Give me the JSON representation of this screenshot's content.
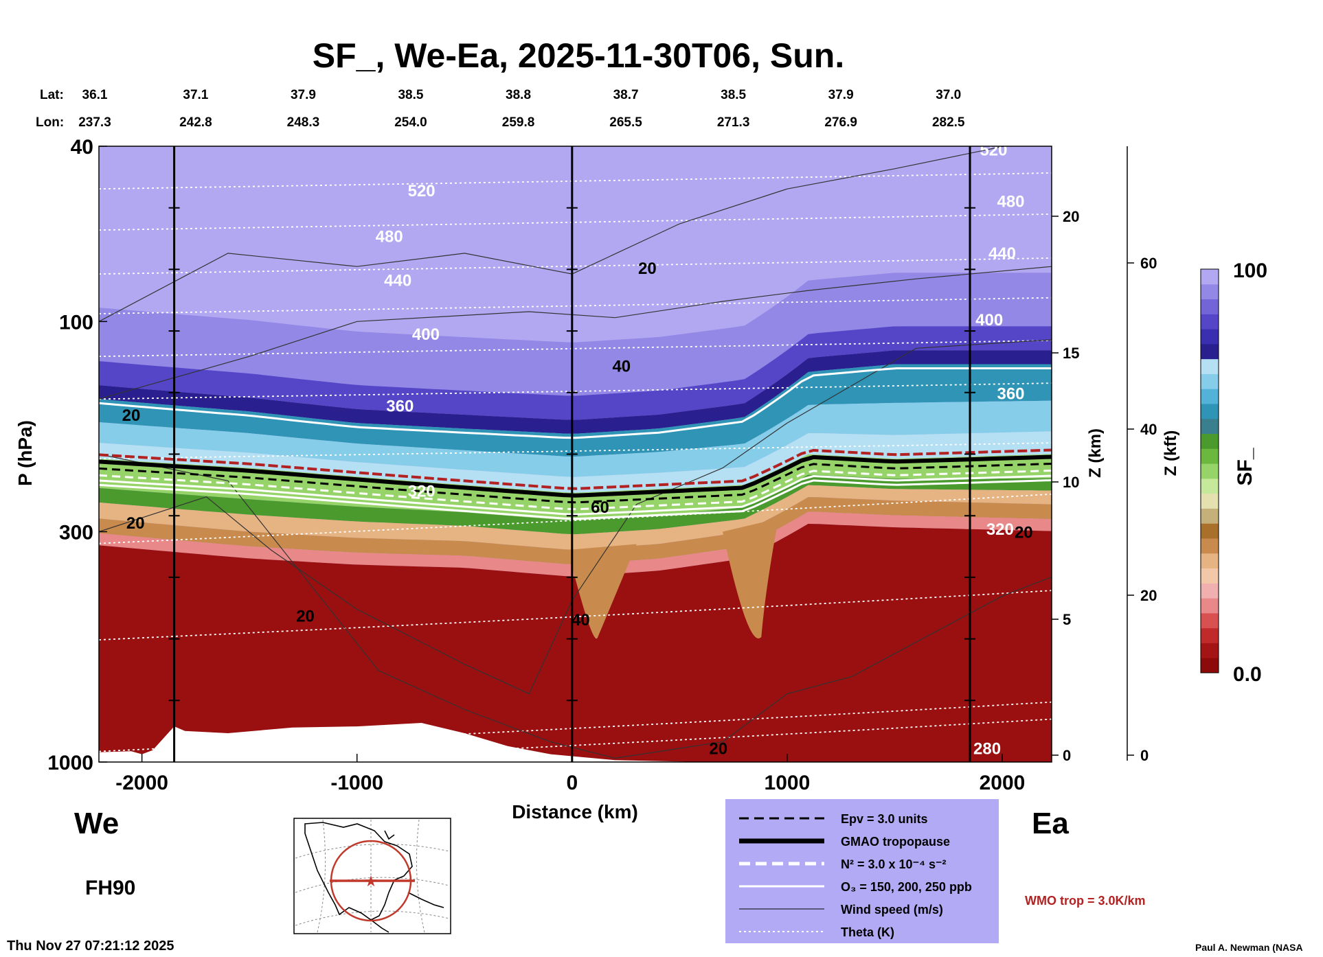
{
  "chart_data": {
    "type": "heatmap",
    "title": "SF_, We-Ea, 2025-11-30T06, Sun.",
    "xlabel": "Distance (km)",
    "ylabel": "P (hPa)",
    "xlim": [
      -2200,
      2230
    ],
    "x_ticks": [
      -2000,
      -1000,
      0,
      1000,
      2000
    ],
    "x_tick_labels": [
      "-2000",
      "-1000",
      "0",
      "1000",
      "2000"
    ],
    "y_ticks": [
      40,
      100,
      300,
      1000
    ],
    "y_tick_labels": [
      "40",
      "100",
      "300",
      "1000"
    ],
    "ylim": [
      1000,
      40
    ],
    "yscale": "log",
    "z_km_ticks": [
      "0",
      "5",
      "10",
      "15",
      "20"
    ],
    "z_km_label": "Z (km)",
    "z_kft_ticks": [
      "0",
      "20",
      "40",
      "60"
    ],
    "z_kft_label": "Z (kft)",
    "lat_header": "Lat:",
    "lon_header": "Lon:",
    "lat_values": [
      "36.1",
      "37.1",
      "37.9",
      "38.5",
      "38.8",
      "38.7",
      "38.5",
      "37.9",
      "37.0"
    ],
    "lon_values": [
      "237.3",
      "242.8",
      "248.3",
      "254.0",
      "259.8",
      "265.5",
      "271.3",
      "276.9",
      "282.5"
    ],
    "coord_distances_km": [
      -2200,
      -1750,
      -1250,
      -750,
      -250,
      250,
      750,
      1250,
      1750
    ],
    "vertical_markers_km": [
      -1850,
      0,
      1850
    ],
    "field": {
      "name": "SF_",
      "colorbar_min_label": "0.0",
      "colorbar_max_label": "100",
      "colorbar_colors": [
        "#8c0a0a",
        "#a51414",
        "#c02a2a",
        "#d85050",
        "#e88888",
        "#f0b0b0",
        "#f3c8a8",
        "#e6b483",
        "#c98a4d",
        "#a9702c",
        "#c6b07a",
        "#e5e0b0",
        "#c5e89a",
        "#96d46a",
        "#6cb83f",
        "#4a9a2e",
        "#3a7f8e",
        "#2f94b5",
        "#52b2d8",
        "#86cdea",
        "#b5e0f3",
        "#2a1f8e",
        "#3a2fb0",
        "#5546c8",
        "#7365d8",
        "#9488e6",
        "#b2a8f2"
      ],
      "contour_profiles_hpa": [
        {
          "x": [
            -2200,
            -1500,
            -1000,
            -500,
            0,
            400,
            800,
            1100,
            1500,
            2230
          ],
          "p_brown": [
            280,
            300,
            310,
            315,
            330,
            320,
            300,
            250,
            255,
            260
          ]
        },
        {
          "x": [
            -2200,
            -1500,
            -1000,
            -500,
            0,
            400,
            800,
            1100,
            1500,
            2230
          ],
          "p_tropo": [
            205,
            215,
            225,
            235,
            245,
            240,
            235,
            200,
            205,
            200
          ]
        },
        {
          "x": [
            -2200,
            -1500,
            -1000,
            -500,
            0,
            400,
            800,
            1100,
            1500,
            2230
          ],
          "p_blue_top": [
            150,
            160,
            170,
            175,
            180,
            175,
            165,
            130,
            125,
            125
          ]
        }
      ]
    },
    "theta_labels": [
      {
        "text": "520",
        "x_km": -700,
        "p_hpa": 52
      },
      {
        "text": "480",
        "x_km": -850,
        "p_hpa": 66
      },
      {
        "text": "440",
        "x_km": -810,
        "p_hpa": 83
      },
      {
        "text": "400",
        "x_km": -680,
        "p_hpa": 110
      },
      {
        "text": "360",
        "x_km": -800,
        "p_hpa": 160
      },
      {
        "text": "320",
        "x_km": -700,
        "p_hpa": 250
      },
      {
        "text": "520",
        "x_km": 1960,
        "p_hpa": 42
      },
      {
        "text": "480",
        "x_km": 2040,
        "p_hpa": 55
      },
      {
        "text": "440",
        "x_km": 2000,
        "p_hpa": 72
      },
      {
        "text": "400",
        "x_km": 1940,
        "p_hpa": 102
      },
      {
        "text": "360",
        "x_km": 2040,
        "p_hpa": 150
      },
      {
        "text": "320",
        "x_km": 1990,
        "p_hpa": 305
      },
      {
        "text": "280",
        "x_km": 1930,
        "p_hpa": 960
      }
    ],
    "wind_labels": [
      {
        "text": "20",
        "x_km": 350,
        "p_hpa": 78
      },
      {
        "text": "40",
        "x_km": 230,
        "p_hpa": 130
      },
      {
        "text": "20",
        "x_km": -2050,
        "p_hpa": 168
      },
      {
        "text": "60",
        "x_km": 130,
        "p_hpa": 272
      },
      {
        "text": "20",
        "x_km": -2030,
        "p_hpa": 295
      },
      {
        "text": "20",
        "x_km": 2100,
        "p_hpa": 310
      },
      {
        "text": "40",
        "x_km": 40,
        "p_hpa": 490
      },
      {
        "text": "20",
        "x_km": -1240,
        "p_hpa": 480
      },
      {
        "text": "20",
        "x_km": 680,
        "p_hpa": 960
      }
    ],
    "legend": [
      {
        "style": "dashed-black",
        "label": "Epv = 3.0 units"
      },
      {
        "style": "thick-black",
        "label": "GMAO tropopause"
      },
      {
        "style": "dashed-white",
        "label": "N² = 3.0 x 10⁻⁴ s⁻²"
      },
      {
        "style": "solid-white",
        "label": "O₃ = 150, 200, 250 ppb"
      },
      {
        "style": "thin-black",
        "label": "Wind speed (m/s)"
      },
      {
        "style": "dotted-white",
        "label": "Theta (K)"
      }
    ],
    "legend_bg": "#b3aaf5"
  },
  "labels": {
    "west": "We",
    "east": "Ea",
    "forecast_hour": "FH90",
    "wmo_trop": "WMO trop = 3.0K/km",
    "timestamp": "Thu Nov 27 07:21:12 2025",
    "credit": "Paul A. Newman (NASA"
  },
  "colors": {
    "wmo_red": "#b22222",
    "map_line": "#c0392b"
  }
}
